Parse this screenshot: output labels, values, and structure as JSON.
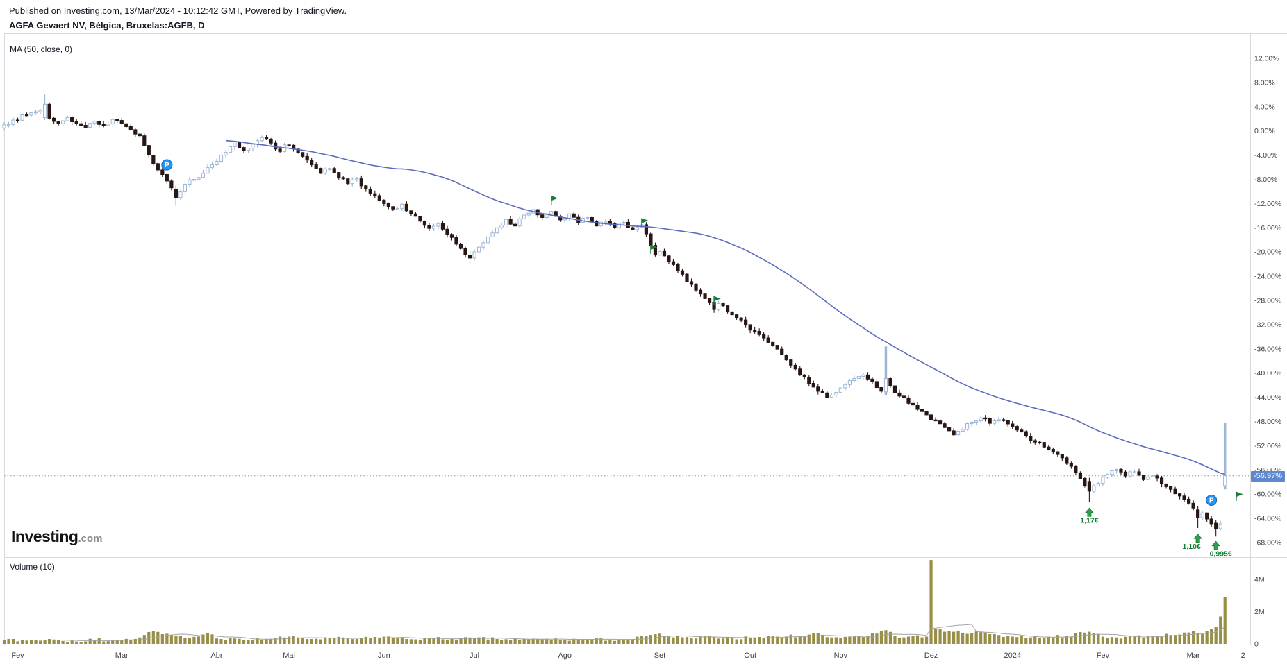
{
  "header": {
    "published": "Published on Investing.com, 13/Mar/2024 - 10:12:42 GMT, Powered by TradingView.",
    "title": "AGFA Gevaert NV, Bélgica, Bruxelas:AGFB, D"
  },
  "main_pane": {
    "ma_label": "MA (50, close, 0)"
  },
  "volume_pane": {
    "label": "Volume (10)"
  },
  "branding": {
    "logo_main": "Investing",
    "logo_suffix": ".com"
  },
  "colors": {
    "up_border": "#9db6d6",
    "up_fill": "#fefefe",
    "down": "#271715",
    "ma_line": "#5b6cc0",
    "volume_bar": "#978e47",
    "volume_ma": "#a3a3a3",
    "price_line": "#9093a0",
    "price_label_bg": "#5d87cf",
    "price_label_text": "#ffffff",
    "flag_green": "#1a7d36",
    "arrow_green": "#2f9e4e",
    "arrow_text": "#0f7d33",
    "badge_blue": "#2196f3",
    "axis_text": "#3e4047",
    "frame": "#d6d9de"
  },
  "chart_data": {
    "type": "candlestick",
    "title": "AGFA Gevaert NV, Bélgica, Bruxelas:AGFB, D",
    "timeframe": "D",
    "indicators": [
      "MA (50, close, 0)",
      "Volume (10)"
    ],
    "n_days": 271,
    "seed": 7,
    "first_open": 0.5,
    "ma_period": 50,
    "vol_ma_period": 10,
    "noise": {
      "close_amp": 0.35,
      "wick_amp": 0.55,
      "vol_amp": 0.1,
      "vol_min": 0.06
    },
    "y_axis": {
      "unit": "%",
      "ticks": [
        12,
        8,
        4,
        0,
        -4,
        -8,
        -12,
        -16,
        -20,
        -24,
        -28,
        -32,
        -36,
        -40,
        -44,
        -48,
        -52,
        -56,
        -60,
        -64,
        -68
      ]
    },
    "last_price_pct": -56.97,
    "last_price_label": "-56.97%",
    "volume_ticks": [
      {
        "v": 4,
        "label": "4M"
      },
      {
        "v": 2,
        "label": "2M"
      },
      {
        "v": 0,
        "label": "0"
      }
    ],
    "x_axis_labels": [
      [
        "Fev",
        3
      ],
      [
        "Mar",
        26
      ],
      [
        "Abr",
        47
      ],
      [
        "Mai",
        63
      ],
      [
        "Jun",
        84
      ],
      [
        "Jul",
        104
      ],
      [
        "Ago",
        124
      ],
      [
        "Set",
        145
      ],
      [
        "Out",
        165
      ],
      [
        "Nov",
        185
      ],
      [
        "Dez",
        205
      ],
      [
        "2024",
        223
      ],
      [
        "Fev",
        243
      ],
      [
        "Mar",
        263
      ],
      [
        "2",
        274
      ]
    ],
    "price_anchors": [
      [
        0,
        1.0
      ],
      [
        2,
        1.8
      ],
      [
        5,
        2.6
      ],
      [
        8,
        3.4
      ],
      [
        9,
        4.4
      ],
      [
        10,
        2.1
      ],
      [
        12,
        1.2
      ],
      [
        14,
        2.2
      ],
      [
        16,
        1.2
      ],
      [
        18,
        0.6
      ],
      [
        20,
        1.6
      ],
      [
        22,
        0.9
      ],
      [
        24,
        1.9
      ],
      [
        26,
        1.2
      ],
      [
        28,
        0.2
      ],
      [
        30,
        -0.8
      ],
      [
        31,
        -2.4
      ],
      [
        33,
        -5.4
      ],
      [
        35,
        -7.2
      ],
      [
        37,
        -9.4
      ],
      [
        38,
        -11.0
      ],
      [
        40,
        -8.8
      ],
      [
        42,
        -8.0
      ],
      [
        44,
        -7.0
      ],
      [
        46,
        -5.6
      ],
      [
        48,
        -4.0
      ],
      [
        50,
        -2.6
      ],
      [
        51,
        -1.8
      ],
      [
        53,
        -3.2
      ],
      [
        55,
        -2.2
      ],
      [
        57,
        -1.1
      ],
      [
        59,
        -2.0
      ],
      [
        61,
        -3.4
      ],
      [
        62,
        -2.3
      ],
      [
        64,
        -3.0
      ],
      [
        66,
        -4.2
      ],
      [
        68,
        -5.6
      ],
      [
        70,
        -7.0
      ],
      [
        72,
        -6.2
      ],
      [
        74,
        -7.7
      ],
      [
        76,
        -8.7
      ],
      [
        78,
        -7.9
      ],
      [
        80,
        -9.6
      ],
      [
        82,
        -10.7
      ],
      [
        84,
        -12.0
      ],
      [
        86,
        -12.9
      ],
      [
        88,
        -12.1
      ],
      [
        90,
        -13.7
      ],
      [
        92,
        -14.9
      ],
      [
        94,
        -16.1
      ],
      [
        96,
        -15.3
      ],
      [
        98,
        -17.1
      ],
      [
        100,
        -18.7
      ],
      [
        102,
        -20.4
      ],
      [
        103,
        -21.0
      ],
      [
        105,
        -19.2
      ],
      [
        107,
        -17.5
      ],
      [
        109,
        -16.0
      ],
      [
        111,
        -14.6
      ],
      [
        113,
        -15.7
      ],
      [
        115,
        -13.9
      ],
      [
        117,
        -13.0
      ],
      [
        119,
        -14.3
      ],
      [
        121,
        -13.3
      ],
      [
        123,
        -14.7
      ],
      [
        125,
        -13.7
      ],
      [
        127,
        -15.1
      ],
      [
        129,
        -14.3
      ],
      [
        131,
        -15.7
      ],
      [
        133,
        -14.9
      ],
      [
        135,
        -16.0
      ],
      [
        137,
        -15.1
      ],
      [
        139,
        -16.3
      ],
      [
        141,
        -15.5
      ],
      [
        142,
        -17.0
      ],
      [
        143,
        -18.9
      ],
      [
        144,
        -20.5
      ],
      [
        145,
        -19.9
      ],
      [
        147,
        -21.6
      ],
      [
        149,
        -23.1
      ],
      [
        151,
        -24.9
      ],
      [
        153,
        -26.3
      ],
      [
        155,
        -27.7
      ],
      [
        157,
        -29.5
      ],
      [
        158,
        -28.5
      ],
      [
        160,
        -29.9
      ],
      [
        162,
        -30.9
      ],
      [
        164,
        -32.0
      ],
      [
        166,
        -33.1
      ],
      [
        168,
        -34.2
      ],
      [
        170,
        -35.4
      ],
      [
        172,
        -37.0
      ],
      [
        174,
        -38.7
      ],
      [
        176,
        -40.3
      ],
      [
        178,
        -41.7
      ],
      [
        180,
        -43.0
      ],
      [
        182,
        -44.0
      ],
      [
        184,
        -43.2
      ],
      [
        186,
        -41.9
      ],
      [
        188,
        -40.9
      ],
      [
        190,
        -40.3
      ],
      [
        192,
        -41.4
      ],
      [
        194,
        -43.0
      ],
      [
        196,
        -42.1
      ],
      [
        198,
        -43.8
      ],
      [
        200,
        -45.0
      ],
      [
        202,
        -46.0
      ],
      [
        204,
        -46.9
      ],
      [
        206,
        -47.9
      ],
      [
        208,
        -49.0
      ],
      [
        210,
        -50.2
      ],
      [
        212,
        -49.3
      ],
      [
        214,
        -48.1
      ],
      [
        216,
        -47.4
      ],
      [
        218,
        -48.3
      ],
      [
        220,
        -47.7
      ],
      [
        222,
        -48.4
      ],
      [
        224,
        -49.4
      ],
      [
        226,
        -50.4
      ],
      [
        228,
        -51.4
      ],
      [
        230,
        -52.2
      ],
      [
        232,
        -53.0
      ],
      [
        234,
        -54.0
      ],
      [
        236,
        -55.4
      ],
      [
        238,
        -57.4
      ],
      [
        240,
        -59.5
      ],
      [
        242,
        -58.2
      ],
      [
        244,
        -56.7
      ],
      [
        246,
        -55.9
      ],
      [
        248,
        -57.0
      ],
      [
        250,
        -56.3
      ],
      [
        252,
        -57.6
      ],
      [
        254,
        -57.0
      ],
      [
        256,
        -58.3
      ],
      [
        258,
        -59.2
      ],
      [
        260,
        -60.3
      ],
      [
        262,
        -61.5
      ],
      [
        263,
        -62.3
      ],
      [
        264,
        -63.9
      ],
      [
        265,
        -63.1
      ],
      [
        266,
        -64.1
      ],
      [
        267,
        -64.9
      ],
      [
        268,
        -65.7
      ],
      [
        269,
        -64.9
      ],
      [
        270,
        -56.97
      ]
    ],
    "price_specials": {
      "9": {
        "o": 2.2,
        "h": 6.0,
        "l": 1.8,
        "c": 4.4
      },
      "38": {
        "o": -9.6,
        "h": -9.0,
        "l": -12.4,
        "c": -11.0
      },
      "103": {
        "o": -20.5,
        "h": -19.8,
        "l": -21.9,
        "c": -21.0
      },
      "195": {
        "o": -43.1,
        "h": -35.6,
        "l": -43.7,
        "c": -40.9,
        "w": 3.5
      },
      "240": {
        "o": -57.9,
        "h": -57.3,
        "l": -61.3,
        "c": -59.5
      },
      "264": {
        "o": -62.6,
        "h": -62.0,
        "l": -65.6,
        "c": -63.9
      },
      "268": {
        "o": -64.8,
        "h": -64.3,
        "l": -67.0,
        "c": -65.7
      },
      "270": {
        "o": -58.6,
        "h": -48.2,
        "l": -59.2,
        "c": -56.97,
        "w": 3.5
      }
    },
    "volume_anchors": [
      [
        0,
        0.25
      ],
      [
        5,
        0.2
      ],
      [
        10,
        0.3
      ],
      [
        15,
        0.2
      ],
      [
        20,
        0.25
      ],
      [
        25,
        0.22
      ],
      [
        29,
        0.3
      ],
      [
        31,
        0.55
      ],
      [
        33,
        0.8
      ],
      [
        35,
        0.6
      ],
      [
        38,
        0.5
      ],
      [
        41,
        0.35
      ],
      [
        45,
        0.65
      ],
      [
        48,
        0.3
      ],
      [
        53,
        0.25
      ],
      [
        58,
        0.3
      ],
      [
        63,
        0.45
      ],
      [
        68,
        0.3
      ],
      [
        73,
        0.35
      ],
      [
        78,
        0.3
      ],
      [
        84,
        0.45
      ],
      [
        89,
        0.3
      ],
      [
        94,
        0.35
      ],
      [
        99,
        0.3
      ],
      [
        104,
        0.35
      ],
      [
        109,
        0.3
      ],
      [
        114,
        0.25
      ],
      [
        119,
        0.3
      ],
      [
        124,
        0.25
      ],
      [
        129,
        0.3
      ],
      [
        134,
        0.25
      ],
      [
        139,
        0.3
      ],
      [
        142,
        0.5
      ],
      [
        144,
        0.6
      ],
      [
        148,
        0.4
      ],
      [
        152,
        0.35
      ],
      [
        157,
        0.45
      ],
      [
        161,
        0.35
      ],
      [
        166,
        0.4
      ],
      [
        171,
        0.45
      ],
      [
        176,
        0.5
      ],
      [
        179,
        0.65
      ],
      [
        183,
        0.4
      ],
      [
        187,
        0.45
      ],
      [
        191,
        0.5
      ],
      [
        195,
        0.85
      ],
      [
        197,
        0.5
      ],
      [
        200,
        0.45
      ],
      [
        204,
        0.45
      ],
      [
        205,
        5.2
      ],
      [
        206,
        0.95
      ],
      [
        208,
        0.75
      ],
      [
        211,
        0.8
      ],
      [
        214,
        0.65
      ],
      [
        217,
        0.7
      ],
      [
        220,
        0.55
      ],
      [
        223,
        0.45
      ],
      [
        227,
        0.4
      ],
      [
        231,
        0.45
      ],
      [
        235,
        0.5
      ],
      [
        240,
        0.75
      ],
      [
        243,
        0.45
      ],
      [
        246,
        0.4
      ],
      [
        250,
        0.45
      ],
      [
        254,
        0.5
      ],
      [
        258,
        0.55
      ],
      [
        261,
        0.7
      ],
      [
        263,
        0.8
      ],
      [
        265,
        0.6
      ],
      [
        267,
        0.9
      ],
      [
        268,
        1.05
      ],
      [
        269,
        1.7
      ],
      [
        270,
        2.9
      ]
    ],
    "flags": [
      {
        "day": 121,
        "value": -11.4
      },
      {
        "day": 141,
        "value": -15.1
      },
      {
        "day": 143,
        "value": -19.5
      },
      {
        "day": 157,
        "value": -28.0
      },
      {
        "day": 272.5,
        "value": -60.3
      }
    ],
    "arrows": [
      {
        "day": 240,
        "value": -62.3,
        "label": "1,17€",
        "label_dx": 0
      },
      {
        "day": 264,
        "value": -66.6,
        "label": "1,10€",
        "label_dx": -9
      },
      {
        "day": 268,
        "value": -67.8,
        "label": "0,995€",
        "label_dx": 7
      }
    ],
    "p_badges": [
      {
        "day": 36,
        "value": -5.6,
        "label": "P"
      },
      {
        "day": 267,
        "value": -61.0,
        "label": "P"
      }
    ]
  }
}
